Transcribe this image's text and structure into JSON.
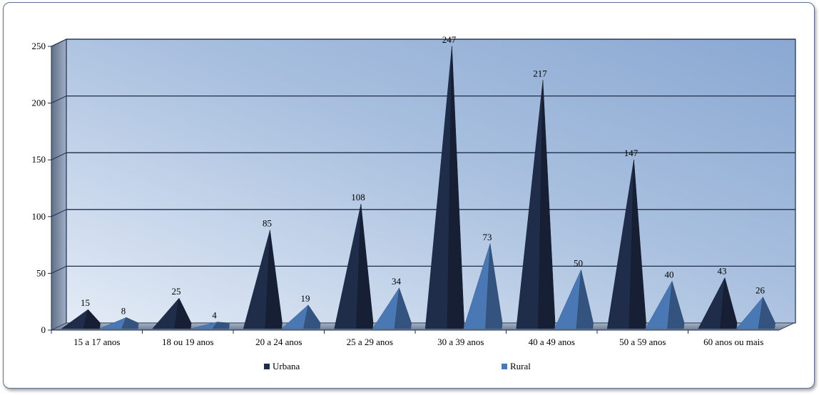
{
  "chart_data": {
    "type": "bar",
    "title": "",
    "xlabel": "",
    "ylabel": "",
    "ylim": [
      0,
      250
    ],
    "yticks": [
      0,
      50,
      100,
      150,
      200,
      250
    ],
    "grid": true,
    "legend_position": "bottom",
    "categories": [
      "15 a 17 anos",
      "18 ou 19 anos",
      "20 a 24 anos",
      "25 a 29 anos",
      "30 a 39 anos",
      "40 a 49 anos",
      "50 a 59 anos",
      "60 anos ou mais"
    ],
    "series": [
      {
        "name": "Urbana",
        "color": "#1f2d4a",
        "values": [
          15,
          25,
          85,
          108,
          247,
          217,
          147,
          43
        ]
      },
      {
        "name": "Rural",
        "color": "#4a78b5",
        "values": [
          8,
          4,
          19,
          34,
          73,
          50,
          40,
          26
        ]
      }
    ]
  }
}
